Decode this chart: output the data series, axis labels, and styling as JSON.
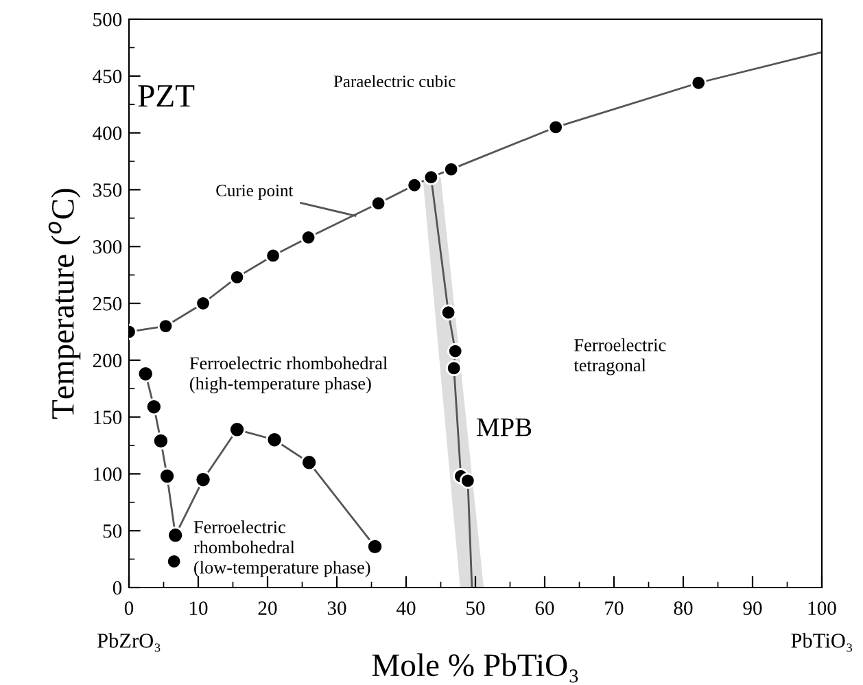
{
  "chart_data": {
    "type": "line",
    "xlabel": "Mole % PbTiO₃",
    "ylabel": "Temperature ($^{o}$C)",
    "xlim": [
      0,
      100
    ],
    "ylim": [
      0,
      500
    ],
    "xticks": [
      0,
      {
        "value": 5,
        "label": null
      },
      10,
      {
        "value": 15,
        "label": null
      },
      20,
      {
        "value": 25,
        "label": null
      },
      30,
      {
        "value": 35,
        "label": null
      },
      40,
      {
        "value": 45,
        "label": null
      },
      50,
      {
        "value": 55,
        "label": null
      },
      60,
      {
        "value": 65,
        "label": null
      },
      70,
      {
        "value": 75,
        "label": null
      },
      80,
      {
        "value": 85,
        "label": null
      },
      90,
      {
        "value": 95,
        "label": null
      },
      100
    ],
    "yticks": [
      0,
      {
        "value": 25,
        "label": null
      },
      50,
      {
        "value": 75,
        "label": null
      },
      100,
      {
        "value": 125,
        "label": null
      },
      150,
      {
        "value": 175,
        "label": null
      },
      200,
      {
        "value": 225,
        "label": null
      },
      250,
      {
        "value": 275,
        "label": null
      },
      300,
      {
        "value": 325,
        "label": null
      },
      350,
      {
        "value": 375,
        "label": null
      },
      400,
      {
        "value": 425,
        "label": null
      },
      450,
      {
        "value": 475,
        "label": null
      },
      500
    ],
    "grid": false,
    "legend": false,
    "series": [
      {
        "type": "area",
        "color": "#dddddd",
        "x": [
          42.4,
          45.0,
          51.2,
          47.8
        ],
        "values": [
          361,
          361,
          0,
          0
        ]
      },
      {
        "color": "#555555",
        "marker": "none",
        "x": [
          0,
          5.3,
          10.7,
          15.6,
          20.8,
          25.9,
          36,
          41.2,
          43.6,
          46.5,
          61.6,
          82.2,
          100
        ],
        "values": [
          225,
          230,
          250,
          273,
          292,
          308,
          338,
          354,
          361,
          368,
          405,
          444,
          471
        ]
      },
      {
        "type": "scatter",
        "color": "#000000",
        "marker": "circle",
        "x": [
          0,
          5.3,
          10.7,
          15.6,
          20.8,
          25.9,
          36,
          41.2,
          43.6,
          46.5,
          61.6,
          82.2
        ],
        "values": [
          225,
          230,
          250,
          273,
          292,
          308,
          338,
          354,
          361,
          368,
          405,
          444
        ]
      },
      {
        "color": "#555555",
        "marker": "none",
        "x": [
          43.6,
          46.1,
          47.1,
          46.9,
          47.9,
          48.9,
          49.5
        ],
        "values": [
          361,
          242,
          208,
          193,
          98,
          94,
          0
        ]
      },
      {
        "type": "scatter",
        "color": "#000000",
        "marker": "circle",
        "x": [
          46.1,
          47.1,
          46.9,
          47.9,
          48.9
        ],
        "values": [
          242,
          208,
          193,
          98,
          94
        ]
      },
      {
        "color": "#555555",
        "marker": "circle",
        "x": [
          2.4,
          3.6,
          4.6,
          5.5,
          6.7,
          10.7,
          15.6,
          21,
          26,
          35.5
        ],
        "values": [
          188,
          159,
          129,
          98,
          46,
          95,
          139,
          130,
          110,
          36
        ]
      },
      {
        "type": "scatter",
        "color": "#000000",
        "marker": "circle",
        "x": [
          6.5
        ],
        "values": [
          23
        ]
      }
    ],
    "annotations": [
      "PZT",
      "Paraelectric cubic",
      {
        "text": "Curie point",
        "x": 32.7,
        "y": 327
      },
      "Ferroelectric rhombohedral\n(high-temperature phase)",
      "Ferroelectric\nrhombohedral\n(low-temperature phase)",
      "MPB",
      "Ferroelectric\ntetragonal",
      "PbZrO₃",
      "PbTiO₃"
    ]
  }
}
